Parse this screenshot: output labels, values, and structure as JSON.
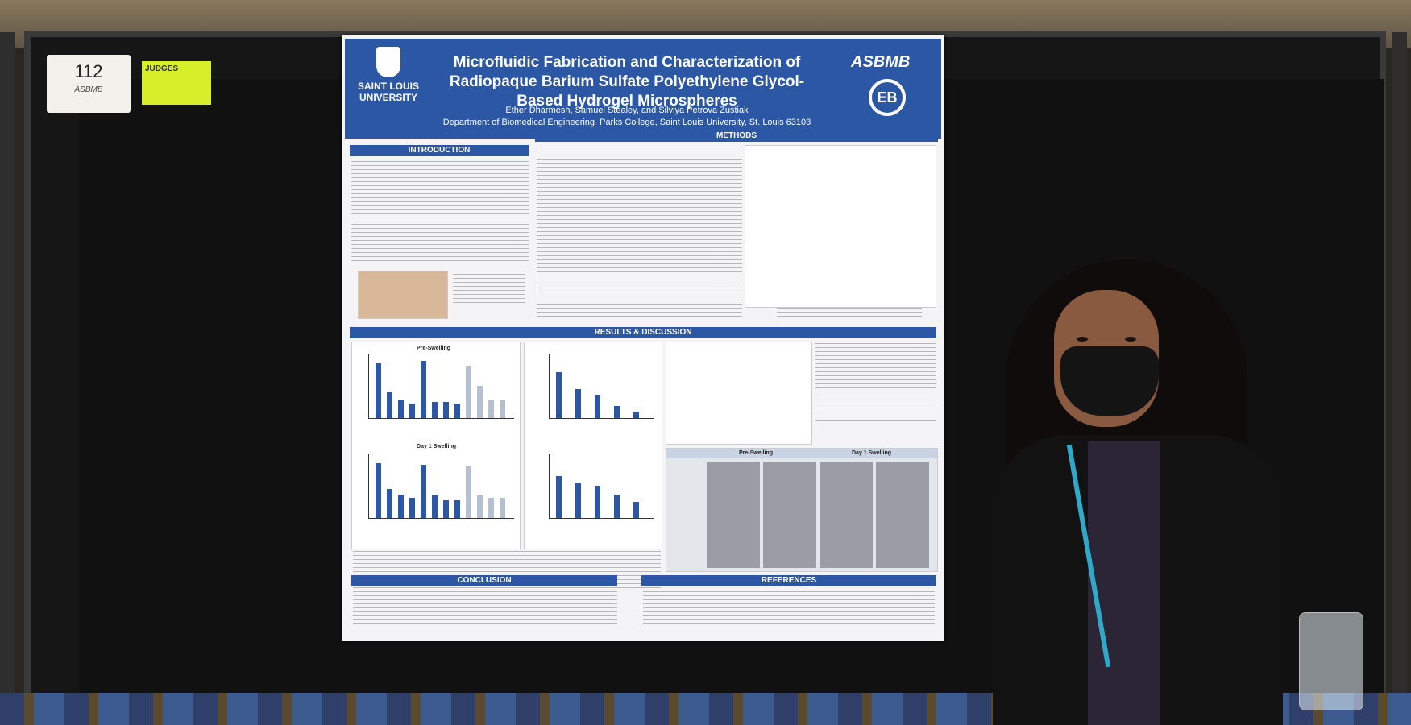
{
  "booth": {
    "number": "112",
    "sponsor": "ASBMB",
    "judge_tag": "JUDGES"
  },
  "poster": {
    "title": "Microfluidic Fabrication and Characterization of Radiopaque Barium Sulfate Polyethylene Glycol-Based Hydrogel Microspheres",
    "authors": "Ether Dharmesh, Samuel Stealey, and Silviya Petrova Zustiak",
    "affiliation": "Department of Biomedical Engineering, Parks College, Saint Louis University, St. Louis 63103",
    "university": "SAINT LOUIS UNIVERSITY",
    "logos": [
      "ASBMB",
      "EB"
    ],
    "sections": {
      "introduction": "INTRODUCTION",
      "methods": "METHODS",
      "results": "RESULTS & DISCUSSION",
      "conclusion": "CONCLUSION",
      "references": "REFERENCES"
    },
    "plots": {
      "pre_swelling": "Pre-Swelling",
      "day1_swelling": "Day 1 Swelling",
      "pre_swelling_hdr": "Pre-Swelling",
      "day1_swelling_hdr": "Day 1 Swelling"
    }
  },
  "chart_data": [
    {
      "type": "bar",
      "title": "Pre-Swelling",
      "values": [
        95,
        45,
        32,
        25,
        98,
        28,
        28,
        25,
        90,
        55,
        30,
        30
      ]
    },
    {
      "type": "bar",
      "title": "Day 1 Swelling",
      "values": [
        95,
        50,
        40,
        35,
        92,
        40,
        30,
        30,
        90,
        40,
        35,
        35
      ]
    },
    {
      "type": "bar",
      "title": "",
      "values": [
        55,
        35,
        28,
        15,
        8
      ]
    },
    {
      "type": "bar",
      "title": "",
      "values": [
        18,
        15,
        14,
        10,
        7
      ]
    }
  ],
  "colors": {
    "poster_blue": "#2b57a4",
    "board": "#161616",
    "judge_tag": "#d7ef2a",
    "lanyard": "#30a8c8"
  }
}
